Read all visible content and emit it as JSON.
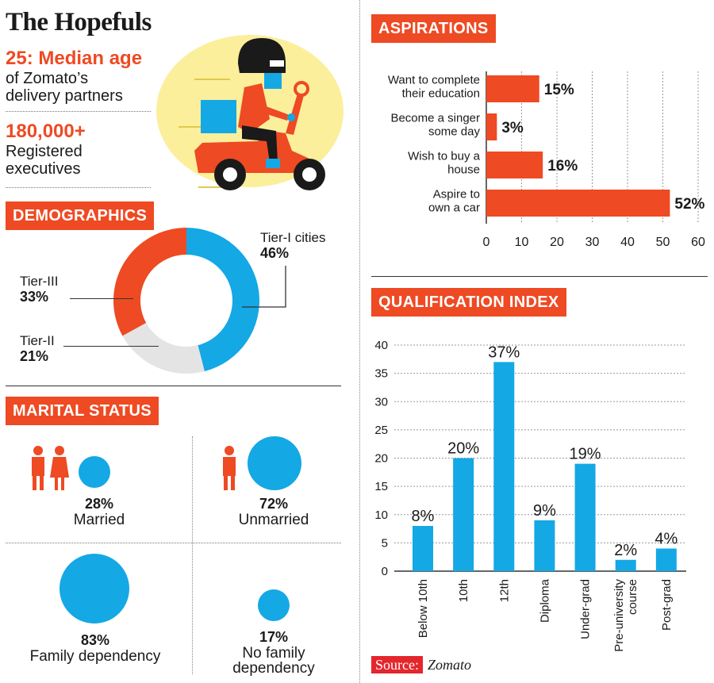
{
  "title": "The Hopefuls",
  "median_age": {
    "value": "25: Median age",
    "text_line1": "of Zomato’s",
    "text_line2": "delivery partners"
  },
  "registered": {
    "value": "180,000+",
    "text_line1": "Registered",
    "text_line2": "executives"
  },
  "colors": {
    "orange": "#ee4a23",
    "blue": "#14a8e5",
    "grey": "#e4e4e4",
    "yellow": "#fbef9c"
  },
  "demographics": {
    "heading": "DEMOGRAPHICS",
    "segments": [
      {
        "label": "Tier-I cities",
        "percent_label": "46%",
        "value": 46,
        "color": "#14a8e5"
      },
      {
        "label": "Tier-II",
        "percent_label": "21%",
        "value": 21,
        "color": "#e4e4e4"
      },
      {
        "label": "Tier-III",
        "percent_label": "33%",
        "value": 33,
        "color": "#ee4a23"
      }
    ]
  },
  "marital": {
    "heading": "MARITAL STATUS",
    "items": [
      {
        "percent_label": "28%",
        "label": "Married",
        "value": 28
      },
      {
        "percent_label": "72%",
        "label": "Unmarried",
        "value": 72
      },
      {
        "percent_label": "83%",
        "label": "Family dependency",
        "value": 83
      },
      {
        "percent_label": "17%",
        "label_line1": "No family",
        "label_line2": "dependency",
        "value": 17
      }
    ]
  },
  "chart_data": [
    {
      "type": "bar",
      "orientation": "horizontal",
      "title": "ASPIRATIONS",
      "categories": [
        "Want to complete their education",
        "Become a singer some day",
        "Wish to buy a house",
        "Aspire to own a car"
      ],
      "category_lines": [
        [
          "Want to complete",
          "their education"
        ],
        [
          "Become a singer",
          "some day"
        ],
        [
          "Wish to buy a",
          "house"
        ],
        [
          "Aspire to",
          "own a car"
        ]
      ],
      "values": [
        15,
        3,
        16,
        52
      ],
      "value_labels": [
        "15%",
        "3%",
        "16%",
        "52%"
      ],
      "xlim": [
        0,
        60
      ],
      "ticks": [
        0,
        10,
        20,
        30,
        40,
        50,
        60
      ],
      "tick_labels": [
        "0",
        "10",
        "20",
        "30",
        "40",
        "50",
        "60"
      ],
      "grid": true
    },
    {
      "type": "bar",
      "orientation": "vertical",
      "title": "QUALIFICATION INDEX",
      "categories": [
        "Below 10th",
        "10th",
        "12th",
        "Diploma",
        "Under-grad",
        "Pre-university course",
        "Post-grad"
      ],
      "category_lines": [
        [
          "Below 10th"
        ],
        [
          "10th"
        ],
        [
          "12th"
        ],
        [
          "Diploma"
        ],
        [
          "Under-grad"
        ],
        [
          "Pre-university",
          "course"
        ],
        [
          "Post-grad"
        ]
      ],
      "values": [
        8,
        20,
        37,
        9,
        19,
        2,
        4
      ],
      "value_labels": [
        "8%",
        "20%",
        "37%",
        "9%",
        "19%",
        "2%",
        "4%"
      ],
      "ylim": [
        0,
        40
      ],
      "ticks": [
        0,
        5,
        10,
        15,
        20,
        25,
        30,
        35,
        40
      ],
      "tick_labels": [
        "0",
        "5",
        "10",
        "15",
        "20",
        "25",
        "30",
        "35",
        "40"
      ],
      "grid": true
    }
  ],
  "source": {
    "label": "Source:",
    "name": "Zomato"
  }
}
